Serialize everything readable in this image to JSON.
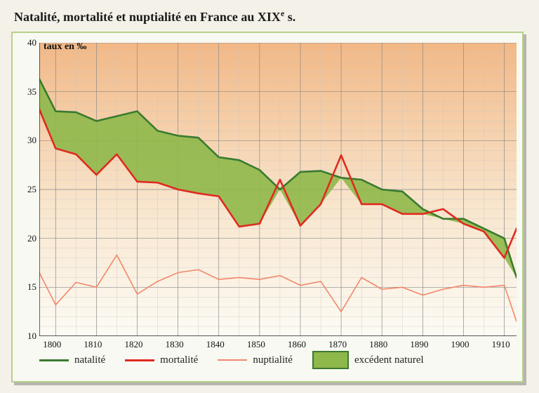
{
  "title_prefix": "Natalité, mortalité et nuptialité en France au ",
  "title_century": "XIX",
  "title_sup": "e",
  "title_suffix": " s.",
  "chart": {
    "type": "line-area",
    "y_title": "taux en ‰",
    "xlim": [
      1796,
      1913
    ],
    "ylim": [
      10,
      40
    ],
    "xtick_step": 10,
    "xtick_start": 1800,
    "xtick_end": 1910,
    "ytick_step": 5,
    "background_gradient_top": "#f2b886",
    "background_gradient_mid": "#f8e5cc",
    "background_gradient_bottom": "#fdfbf5",
    "grid_color": "#8a8a8a",
    "grid_light_color": "#c5c5c5",
    "axis_color": "#222222",
    "axis_label_fontsize": 13,
    "title_fontsize": 18,
    "line_width_main": 2.6,
    "line_width_thin": 1.6,
    "area_color": "#8fb84a",
    "area_border_color": "#3a7a2f",
    "series": {
      "natalite": {
        "label": "natalité",
        "color": "#3a7a2f",
        "width": 2.6,
        "x": [
          1796,
          1800,
          1805,
          1810,
          1815,
          1820,
          1825,
          1830,
          1835,
          1840,
          1845,
          1850,
          1855,
          1860,
          1865,
          1870,
          1875,
          1880,
          1885,
          1890,
          1895,
          1900,
          1905,
          1910,
          1913
        ],
        "y": [
          36.3,
          33.0,
          32.9,
          32.0,
          32.5,
          33.0,
          31.0,
          30.5,
          30.3,
          28.3,
          28.0,
          27.0,
          25.0,
          26.8,
          26.9,
          26.2,
          26.0,
          25.0,
          24.8,
          23.0,
          22.0,
          22.0,
          21.0,
          20.0,
          16.0
        ]
      },
      "mortalite": {
        "label": "mortalité",
        "color": "#e02a1f",
        "width": 2.6,
        "x": [
          1796,
          1800,
          1805,
          1810,
          1815,
          1820,
          1825,
          1830,
          1835,
          1840,
          1845,
          1850,
          1855,
          1860,
          1865,
          1870,
          1875,
          1880,
          1885,
          1890,
          1895,
          1900,
          1905,
          1910,
          1913
        ],
        "y": [
          33.2,
          29.2,
          28.6,
          26.5,
          28.6,
          25.8,
          25.7,
          25.0,
          24.6,
          24.3,
          21.2,
          21.5,
          26.0,
          21.3,
          23.5,
          28.5,
          23.5,
          23.5,
          22.5,
          22.5,
          23.0,
          21.5,
          20.7,
          18.0,
          21.0
        ]
      },
      "nuptialite": {
        "label": "nuptialité",
        "color": "#f2876a",
        "width": 1.6,
        "x": [
          1796,
          1800,
          1805,
          1810,
          1815,
          1820,
          1825,
          1830,
          1835,
          1840,
          1845,
          1850,
          1855,
          1860,
          1865,
          1870,
          1875,
          1880,
          1885,
          1890,
          1895,
          1900,
          1905,
          1910,
          1913
        ],
        "y": [
          16.5,
          13.2,
          15.5,
          15.0,
          18.3,
          14.3,
          15.6,
          16.5,
          16.8,
          15.8,
          16.0,
          15.8,
          16.2,
          15.2,
          15.6,
          12.5,
          16.0,
          14.8,
          15.0,
          14.2,
          14.8,
          15.2,
          15.0,
          15.2,
          11.5
        ]
      }
    },
    "area_between": [
      "natalite",
      "mortalite"
    ],
    "legend": {
      "items": [
        {
          "type": "line",
          "series": "natalite"
        },
        {
          "type": "line",
          "series": "mortalite"
        },
        {
          "type": "line",
          "series": "nuptialite"
        },
        {
          "type": "area",
          "label": "excédent naturel"
        }
      ]
    }
  }
}
